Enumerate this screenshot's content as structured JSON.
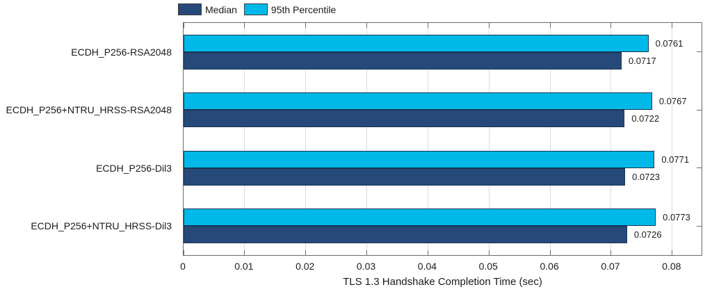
{
  "legend": {
    "items": [
      {
        "label": "Median",
        "color": "#27497A"
      },
      {
        "label": "95th Percentile",
        "color": "#00B9E8"
      }
    ]
  },
  "chart_data": {
    "type": "bar",
    "orientation": "horizontal",
    "title": "",
    "xlabel": "TLS 1.3 Handshake Completion Time (sec)",
    "ylabel": "",
    "categories": [
      "ECDH_P256-RSA2048",
      "ECDH_P256+NTRU_HRSS-RSA2048",
      "ECDH_P256-Dil3",
      "ECDH_P256+NTRU_HRSS-Dil3"
    ],
    "series": [
      {
        "name": "Median",
        "color": "#27497A",
        "values": [
          0.0717,
          0.0722,
          0.0723,
          0.0726
        ],
        "labels": [
          "0.0717",
          "0.0722",
          "0.0723",
          "0.0726"
        ]
      },
      {
        "name": "95th Percentile",
        "color": "#00B9E8",
        "values": [
          0.0761,
          0.0767,
          0.0771,
          0.0773
        ],
        "labels": [
          "0.0761",
          "0.0767",
          "0.0771",
          "0.0773"
        ]
      }
    ],
    "xlim": [
      0,
      0.0848
    ],
    "xticks": [
      0,
      0.01,
      0.02,
      0.03,
      0.04,
      0.05,
      0.06,
      0.07,
      0.08
    ],
    "xtick_labels": [
      "0",
      "0.01",
      "0.02",
      "0.03",
      "0.04",
      "0.05",
      "0.06",
      "0.07",
      "0.08"
    ],
    "grid": "vertical",
    "legend_position": "top-left"
  }
}
